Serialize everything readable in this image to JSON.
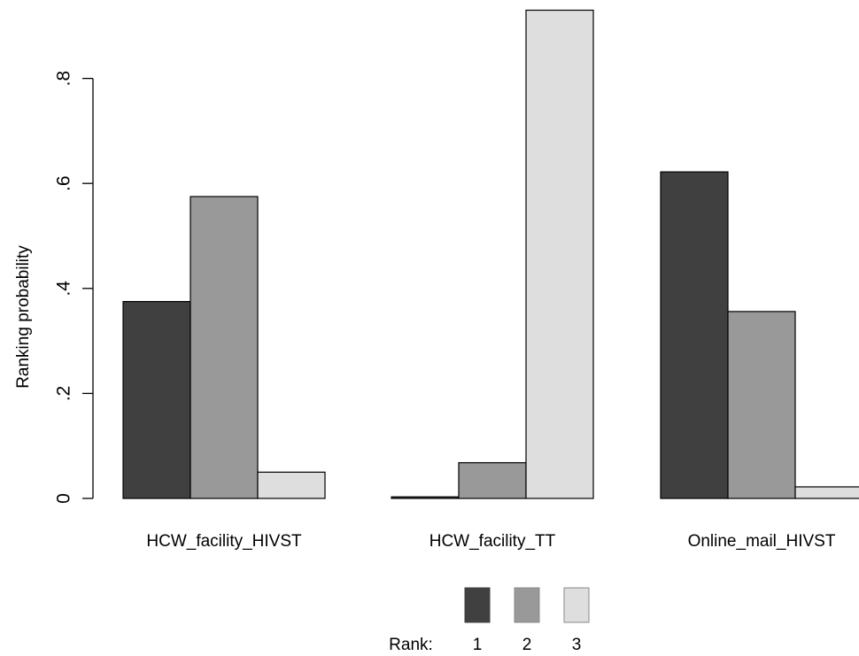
{
  "chart_data": {
    "type": "bar",
    "title": "",
    "xlabel": "",
    "ylabel": "Ranking probability",
    "ylim": [
      0,
      0.93
    ],
    "yticks": [
      0,
      0.2,
      0.4,
      0.6,
      0.8
    ],
    "ytick_labels": [
      "0",
      ".2",
      ".4",
      ".6",
      ".8"
    ],
    "categories": [
      "HCW_facility_HIVST",
      "HCW_facility_TT",
      "Online_mail_HIVST"
    ],
    "series": [
      {
        "name": "1",
        "color": "#404040",
        "values": [
          0.375,
          0.003,
          0.622
        ]
      },
      {
        "name": "2",
        "color": "#999999",
        "values": [
          0.575,
          0.068,
          0.356
        ]
      },
      {
        "name": "3",
        "color": "#dedede",
        "values": [
          0.05,
          0.93,
          0.022
        ]
      }
    ],
    "grid": false,
    "legend": {
      "placement": "bottom",
      "title": "Rank:",
      "labels": [
        "1",
        "2",
        "3"
      ]
    }
  }
}
